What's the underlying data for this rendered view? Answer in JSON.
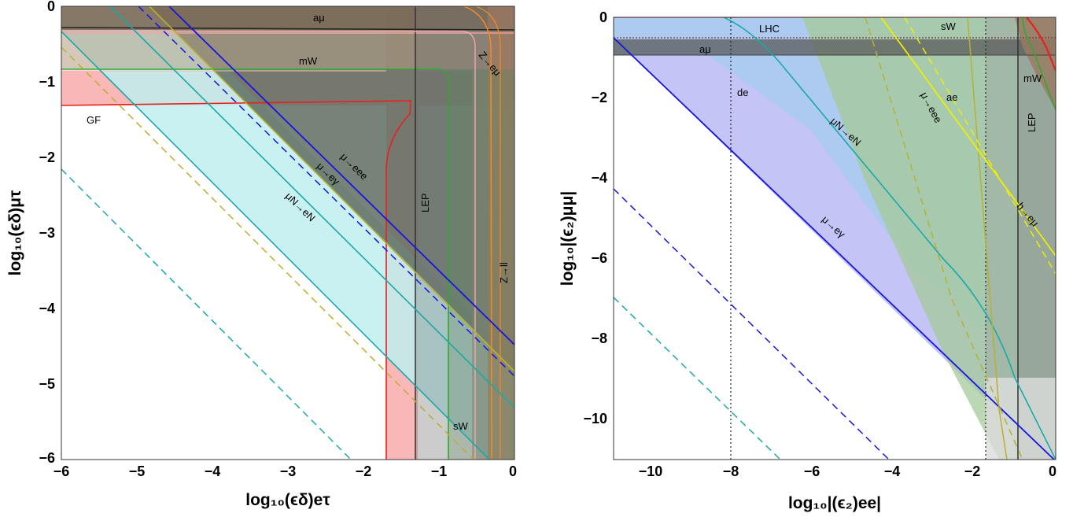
{
  "chart_data": [
    {
      "type": "area",
      "xlabel": "log₁₀(ϵδ)eτ",
      "ylabel": "log₁₀(ϵδ)μτ",
      "xlim": [
        -6,
        0
      ],
      "ylim": [
        -6,
        0
      ],
      "xticks": [
        "−6",
        "−5",
        "−4",
        "−3",
        "−2",
        "−1",
        "0"
      ],
      "yticks": [
        "0",
        "−1",
        "−2",
        "−3",
        "−4",
        "−5",
        "−6"
      ],
      "grid": false,
      "series": [
        {
          "name": "aμ",
          "kind": "horizontal-bound",
          "y": -0.3,
          "color": "#333333"
        },
        {
          "name": "mW",
          "kind": "corner-bound",
          "corner": [
            -0.85,
            -0.85
          ],
          "color": "#2eaa2e"
        },
        {
          "name": "GF",
          "kind": "corner-bound",
          "corner": [
            -1.3,
            -1.3
          ],
          "color": "#e82020"
        },
        {
          "name": "LEP",
          "kind": "vertical-bound",
          "x": -1.25,
          "color": "#333333"
        },
        {
          "name": "Z→eμ",
          "kind": "corner-bound",
          "corner": [
            -0.25,
            -0.3
          ],
          "color": "#f08a24"
        },
        {
          "name": "Z→ll",
          "kind": "vertical-bound",
          "x": -0.25,
          "color": "#f08a24"
        },
        {
          "name": "μ→eee",
          "kind": "diagonal",
          "x": [
            -4.5,
            0
          ],
          "y": [
            0,
            -4.5
          ],
          "color": "#b8b030"
        },
        {
          "name": "μ→eγ",
          "kind": "diagonal",
          "x": [
            -4.2,
            0
          ],
          "y": [
            0,
            -4.5
          ],
          "color": "#1515dd"
        },
        {
          "name": "μN→eN",
          "kind": "diagonal",
          "x": [
            -5.1,
            0
          ],
          "y": [
            0,
            -5.3
          ],
          "color": "#1aa8a8"
        },
        {
          "name": "sW",
          "kind": "diagonal-dashed",
          "x": [
            -6,
            -0.3
          ],
          "y": [
            -0.3,
            -6
          ],
          "color": "#b8b030"
        }
      ],
      "annotations": [
        "aμ",
        "mW",
        "GF",
        "μ→eee",
        "μ→eγ",
        "μN→eN",
        "LEP",
        "Z→eμ",
        "Z→ll",
        "sW"
      ]
    },
    {
      "type": "area",
      "xlabel": "log₁₀|(ϵ₂)ee|",
      "ylabel": "log₁₀|(ϵ₂)μμ|",
      "xlim": [
        -11,
        0
      ],
      "ylim": [
        -11,
        0
      ],
      "xticks": [
        "−10",
        "−8",
        "−6",
        "−4",
        "−2",
        "0"
      ],
      "yticks": [
        "0",
        "−2",
        "−4",
        "−6",
        "−8",
        "−10"
      ],
      "grid": false,
      "series": [
        {
          "name": "LHC",
          "kind": "horizontal-bound",
          "y": -0.55,
          "color": "#333333"
        },
        {
          "name": "aμ",
          "kind": "horizontal-band",
          "y": [
            -0.55,
            -0.95
          ],
          "color": "#555555"
        },
        {
          "name": "de",
          "kind": "vertical-dotted",
          "x": -8.05,
          "color": "#222222"
        },
        {
          "name": "ae",
          "kind": "vertical-dotted",
          "x": -1.7,
          "color": "#222222"
        },
        {
          "name": "LEP",
          "kind": "vertical-bound",
          "x": -0.9,
          "color": "#333333"
        },
        {
          "name": "μ→eγ",
          "kind": "diagonal",
          "x": [
            -11,
            -0.2
          ],
          "y": [
            -0.5,
            -11
          ],
          "color": "#1515dd"
        },
        {
          "name": "μN→eN",
          "kind": "curve",
          "color": "#1aa8a8"
        },
        {
          "name": "μ→eee",
          "kind": "curve",
          "color": "#b8b030"
        },
        {
          "name": "h→eμ",
          "kind": "diagonal",
          "x": [
            -4.5,
            0
          ],
          "y": [
            0,
            -6
          ],
          "color": "#eeee00"
        },
        {
          "name": "sW",
          "kind": "corner-bound",
          "color": "#b8b030"
        },
        {
          "name": "mW",
          "kind": "corner-bound",
          "color": "#2eaa2e"
        }
      ],
      "annotations": [
        "LHC",
        "aμ",
        "de",
        "ae",
        "sW",
        "mW",
        "μ→eee",
        "μN→eN",
        "μ→eγ",
        "LEP",
        "h→eμ"
      ]
    }
  ],
  "labels": {
    "left": {
      "amu": "aμ",
      "mw": "mW",
      "gf": "GF",
      "mueee": "μ→eee",
      "mueg": "μ→eγ",
      "muNeN": "μN→eN",
      "lep": "LEP",
      "zemu": "Z→eμ",
      "zll": "Z→ll",
      "sw": "sW"
    },
    "right": {
      "lhc": "LHC",
      "amu": "aμ",
      "de": "de",
      "ae": "ae",
      "sw": "sW",
      "mw": "mW",
      "mueee": "μ→eee",
      "muNeN": "μN→eN",
      "mueg": "μ→eγ",
      "lep": "LEP",
      "hemu": "h→eμ"
    }
  }
}
